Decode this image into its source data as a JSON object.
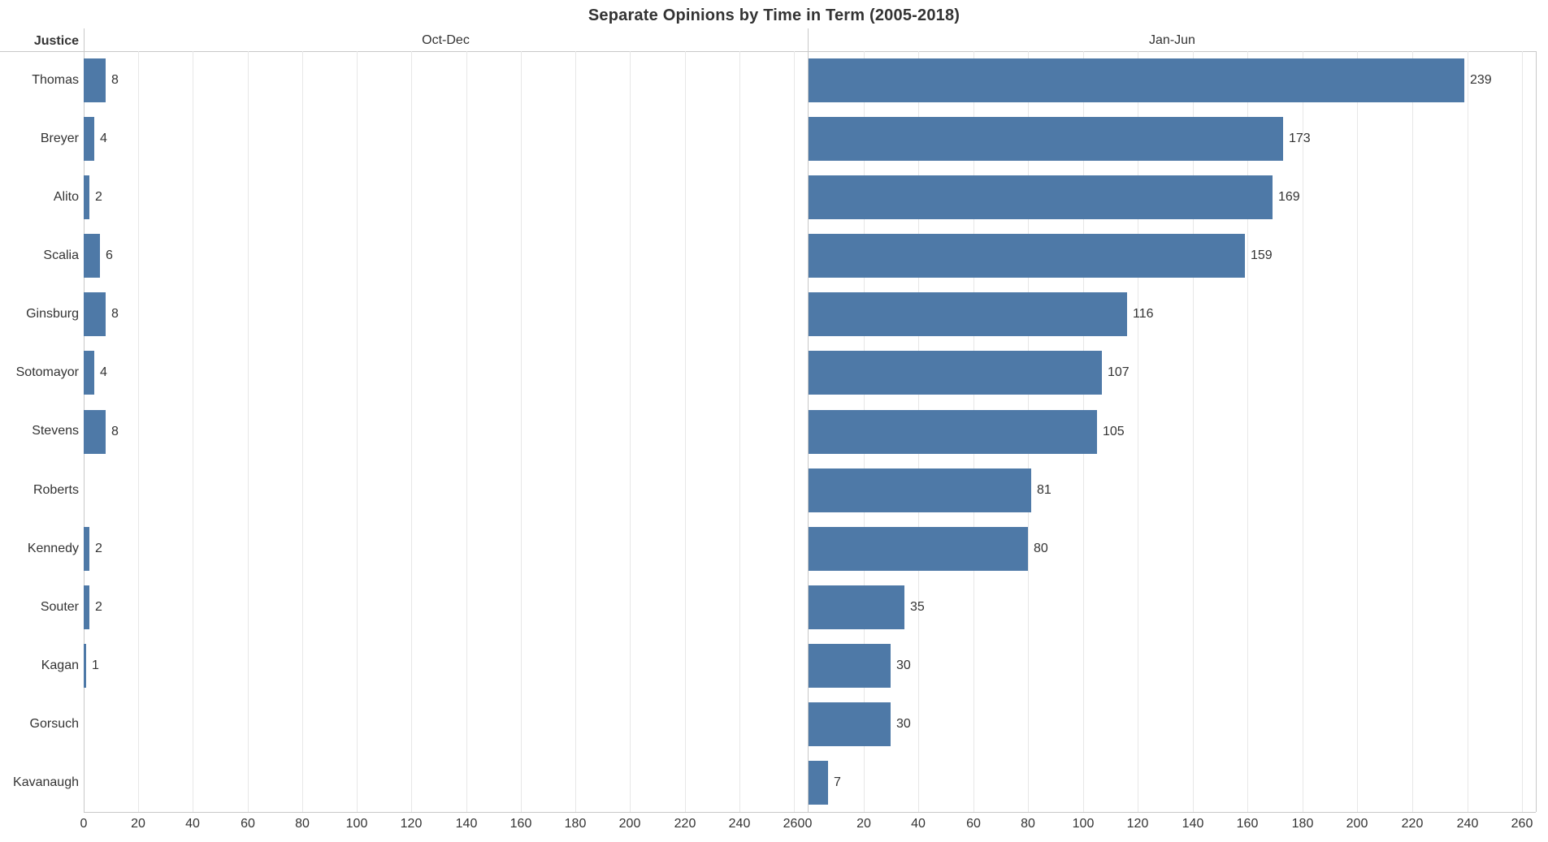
{
  "title": "Separate Opinions by Time in Term (2005-2018)",
  "row_header": "Justice",
  "panels": [
    {
      "label": "Oct-Dec"
    },
    {
      "label": "Jan-Jun"
    }
  ],
  "chart_data": {
    "type": "bar",
    "orientation": "horizontal",
    "title": "Separate Opinions by Time in Term (2005-2018)",
    "categories": [
      "Thomas",
      "Breyer",
      "Alito",
      "Scalia",
      "Ginsburg",
      "Sotomayor",
      "Stevens",
      "Roberts",
      "Kennedy",
      "Souter",
      "Kagan",
      "Gorsuch",
      "Kavanaugh"
    ],
    "series": [
      {
        "name": "Oct-Dec",
        "values": [
          8,
          4,
          2,
          6,
          8,
          4,
          8,
          null,
          2,
          2,
          1,
          null,
          null
        ]
      },
      {
        "name": "Jan-Jun",
        "values": [
          239,
          173,
          169,
          159,
          116,
          107,
          105,
          81,
          80,
          35,
          30,
          30,
          7
        ]
      }
    ],
    "xlim": [
      0,
      265
    ],
    "xticks": [
      0,
      20,
      40,
      60,
      80,
      100,
      120,
      140,
      160,
      180,
      200,
      220,
      240,
      260
    ],
    "grid": true,
    "legend": "column headers per panel",
    "bar_color": "#4e79a7",
    "gridline_color": "#e7e7e7",
    "axis_line_color": "#c8c8c8",
    "text_color": "#333333"
  }
}
